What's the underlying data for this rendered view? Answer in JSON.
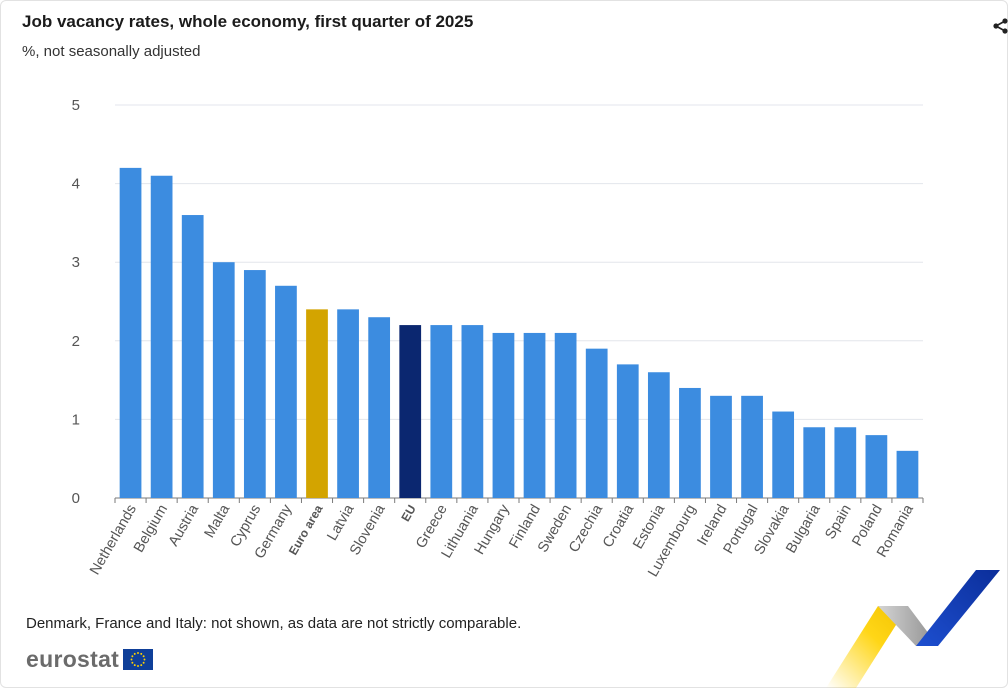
{
  "header": {
    "title": "Job vacancy rates, whole economy, first quarter of 2025",
    "subtitle": "%, not seasonally adjusted"
  },
  "footer": {
    "note": "Denmark, France and Italy: not shown, as data are not strictly comparable.",
    "logo_text": "eurostat"
  },
  "icons": {
    "share": "share-icon",
    "flag": "eu-flag-icon"
  },
  "colors": {
    "country": "#3c8ce0",
    "euro_area": "#d3a400",
    "eu": "#0b2770",
    "grid": "#e3e6ec",
    "tick_text": "#555555"
  },
  "chart_data": {
    "type": "bar",
    "title": "Job vacancy rates, whole economy, first quarter of 2025",
    "subtitle": "%, not seasonally adjusted",
    "xlabel": "",
    "ylabel": "",
    "ylim": [
      0,
      5
    ],
    "yticks": [
      0,
      1,
      2,
      3,
      4,
      5
    ],
    "grid": true,
    "categories": [
      "Netherlands",
      "Belgium",
      "Austria",
      "Malta",
      "Cyprus",
      "Germany",
      "Euro area",
      "Latvia",
      "Slovenia",
      "EU",
      "Greece",
      "Lithuania",
      "Hungary",
      "Finland",
      "Sweden",
      "Czechia",
      "Croatia",
      "Estonia",
      "Luxembourg",
      "Ireland",
      "Portugal",
      "Slovakia",
      "Bulgaria",
      "Spain",
      "Poland",
      "Romania"
    ],
    "values": [
      4.2,
      4.1,
      3.6,
      3.0,
      2.9,
      2.7,
      2.4,
      2.4,
      2.3,
      2.2,
      2.2,
      2.2,
      2.1,
      2.1,
      2.1,
      1.9,
      1.7,
      1.6,
      1.4,
      1.3,
      1.3,
      1.1,
      0.9,
      0.9,
      0.8,
      0.6
    ],
    "highlight": {
      "Euro area": "euro_area",
      "EU": "eu"
    },
    "bold_labels": [
      "Euro area",
      "EU"
    ]
  }
}
